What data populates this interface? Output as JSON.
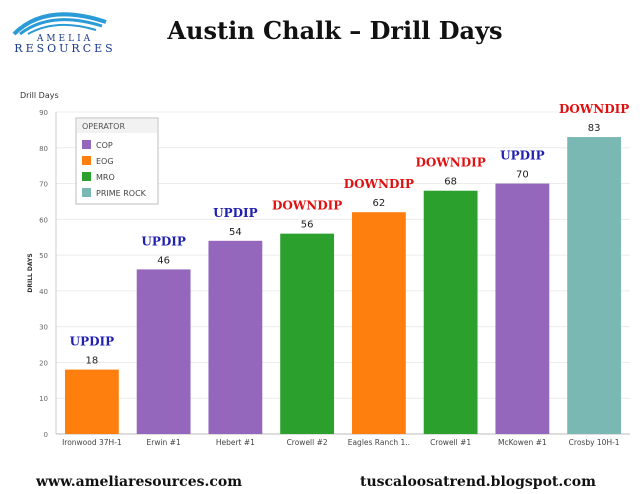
{
  "logo": {
    "line1": "AMELIA",
    "line2": "RESOURCES"
  },
  "title": "Austin Chalk – Drill Days",
  "footer": {
    "left": "www.ameliaresources.com",
    "right": "tuscaloosatrend.blogspot.com"
  },
  "colors": {
    "COP": "#9467bd",
    "EOG": "#ff7f0e",
    "MRO": "#2ca02c",
    "PRIME ROCK": "#7ab8b4",
    "updip": "#1f1fb0",
    "downdip": "#e01010"
  },
  "chart_data": {
    "type": "bar",
    "title": "Austin Chalk – Drill Days",
    "top_axis_label": "Drill Days",
    "ylabel": "DRILL DAYS",
    "ylim": [
      0,
      90
    ],
    "yticks": [
      0,
      10,
      20,
      30,
      40,
      50,
      60,
      70,
      80,
      90
    ],
    "grid": true,
    "legend": {
      "title": "OPERATOR",
      "placement": "top-left",
      "entries": [
        "COP",
        "EOG",
        "MRO",
        "PRIME ROCK"
      ]
    },
    "categories": [
      "Ironwood 37H-1",
      "Erwin #1",
      "Hebert #1",
      "Crowell #2",
      "Eagles Ranch 1..",
      "Crowell #1",
      "McKowen #1",
      "Crosby 10H-1"
    ],
    "values": [
      18,
      46,
      54,
      56,
      62,
      68,
      70,
      83
    ],
    "operators": [
      "EOG",
      "COP",
      "COP",
      "MRO",
      "EOG",
      "MRO",
      "COP",
      "PRIME ROCK"
    ],
    "annotations": [
      "UPDIP",
      "UPDIP",
      "UPDIP",
      "DOWNDIP",
      "DOWNDIP",
      "DOWNDIP",
      "UPDIP",
      "DOWNDIP"
    ]
  }
}
